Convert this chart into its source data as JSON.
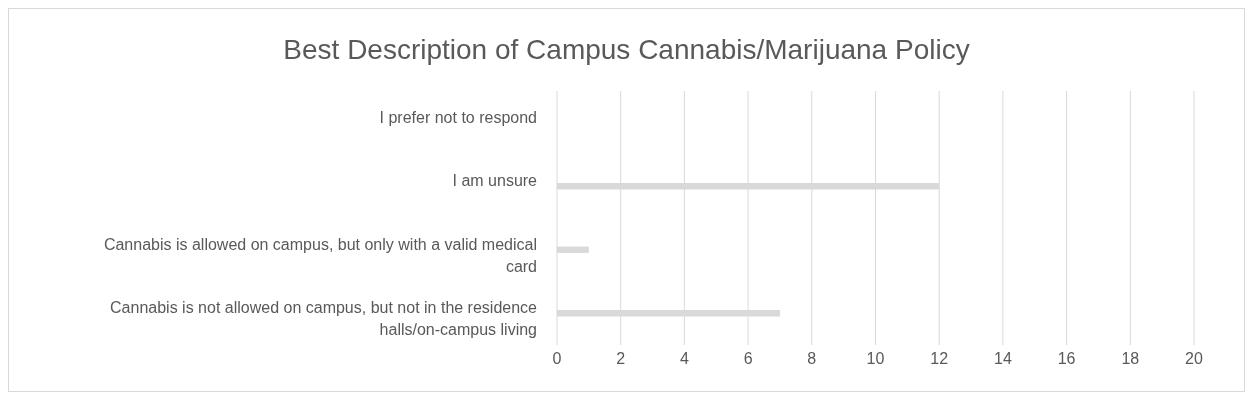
{
  "chart_data": {
    "type": "bar",
    "orientation": "horizontal",
    "title": "Best Description of Campus Cannabis/Marijuana Policy",
    "categories": [
      "I prefer not to respond",
      "I am unsure",
      "Cannabis is allowed on campus, but only with a valid medical card",
      "Cannabis is not allowed on campus, but not in the residence halls/on-campus living"
    ],
    "values": [
      0,
      12,
      1,
      7
    ],
    "color": "#d9d9d9",
    "xlim": [
      0,
      20
    ],
    "xticks": [
      0,
      2,
      4,
      6,
      8,
      10,
      12,
      14,
      16,
      18,
      20
    ],
    "grid": "x"
  }
}
